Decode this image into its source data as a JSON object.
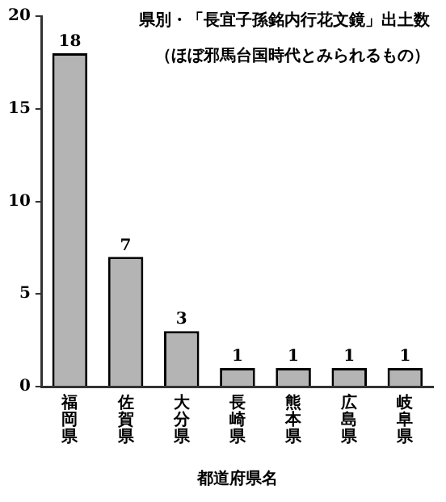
{
  "chart_data": {
    "type": "bar",
    "title": "県別・「長宜子孫銘内行花文鏡」出土数",
    "subtitle": "（ほぼ邪馬台国時代とみられるもの）",
    "xlabel": "都道府県名",
    "categories": [
      "福岡県",
      "佐賀県",
      "大分県",
      "長崎県",
      "熊本県",
      "広島県",
      "岐阜県"
    ],
    "values": [
      18,
      7,
      3,
      1,
      1,
      1,
      1
    ],
    "color": "#b4b4b4",
    "ylim": [
      0,
      20
    ],
    "yticks": [
      0,
      5,
      10,
      15,
      20
    ],
    "grid": false,
    "legend": false,
    "data_labels": true
  }
}
